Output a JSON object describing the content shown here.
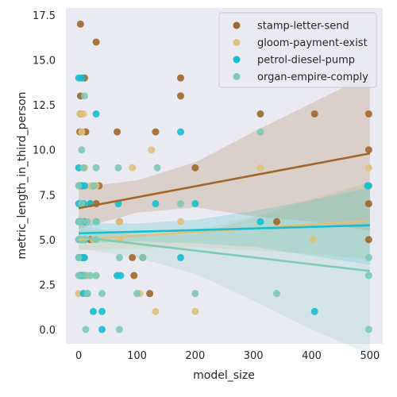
{
  "chart_data": {
    "type": "scatter",
    "xlabel": "model_size",
    "ylabel": "metric_length_in_third_person",
    "xlim": [
      -22,
      522
    ],
    "ylim": [
      -0.8,
      17.9
    ],
    "x_ticks": [
      0,
      100,
      200,
      300,
      400,
      500
    ],
    "y_ticks": [
      0.0,
      2.5,
      5.0,
      7.5,
      10.0,
      12.5,
      15.0,
      17.5
    ],
    "grid": false,
    "legend_position": "top-right",
    "series": [
      {
        "name": "stamp-letter-send",
        "color": "#a0662a",
        "points": [
          [
            3,
            17
          ],
          [
            30,
            16
          ],
          [
            3,
            13
          ],
          [
            10,
            14
          ],
          [
            175,
            14
          ],
          [
            175,
            13
          ],
          [
            312,
            12
          ],
          [
            405,
            12
          ],
          [
            498,
            12
          ],
          [
            498,
            10
          ],
          [
            200,
            9
          ],
          [
            2,
            11
          ],
          [
            12,
            11
          ],
          [
            66,
            11
          ],
          [
            132,
            11
          ],
          [
            35,
            8
          ],
          [
            2,
            8
          ],
          [
            5,
            8
          ],
          [
            25,
            8
          ],
          [
            20,
            7
          ],
          [
            30,
            7
          ],
          [
            498,
            7
          ],
          [
            70,
            6
          ],
          [
            340,
            6
          ],
          [
            498,
            5
          ],
          [
            8,
            4
          ],
          [
            92,
            4
          ],
          [
            8,
            3
          ],
          [
            95,
            3
          ],
          [
            2,
            3
          ],
          [
            10,
            3
          ],
          [
            15,
            2
          ],
          [
            122,
            2
          ],
          [
            10,
            6
          ],
          [
            20,
            5
          ],
          [
            3,
            12
          ],
          [
            110,
            4
          ]
        ],
        "fit": [
          [
            0,
            6.75
          ],
          [
            500,
            9.8
          ]
        ],
        "ci_upper": [
          [
            0,
            7.9
          ],
          [
            100,
            8.3
          ],
          [
            200,
            9.3
          ],
          [
            300,
            11.0
          ],
          [
            400,
            12.6
          ],
          [
            500,
            14.2
          ]
        ],
        "ci_lower": [
          [
            0,
            5.6
          ],
          [
            100,
            6.5
          ],
          [
            200,
            6.8
          ],
          [
            300,
            6.3
          ],
          [
            400,
            6.0
          ],
          [
            500,
            5.5
          ]
        ]
      },
      {
        "name": "gloom-payment-exist",
        "color": "#dfc07e",
        "points": [
          [
            2,
            12
          ],
          [
            8,
            12
          ],
          [
            5,
            11
          ],
          [
            10,
            9
          ],
          [
            0,
            8
          ],
          [
            8,
            7
          ],
          [
            20,
            8
          ],
          [
            30,
            8
          ],
          [
            92,
            9
          ],
          [
            125,
            10
          ],
          [
            312,
            9
          ],
          [
            498,
            9
          ],
          [
            0,
            6
          ],
          [
            8,
            6
          ],
          [
            30,
            6
          ],
          [
            70,
            6
          ],
          [
            70,
            5
          ],
          [
            175,
            6
          ],
          [
            10,
            5
          ],
          [
            25,
            5
          ],
          [
            402,
            5
          ],
          [
            0,
            4
          ],
          [
            5,
            3
          ],
          [
            15,
            3
          ],
          [
            30,
            3
          ],
          [
            105,
            2
          ],
          [
            132,
            1
          ],
          [
            200,
            1
          ],
          [
            0,
            2
          ],
          [
            498,
            8
          ]
        ],
        "fit": [
          [
            0,
            5.0
          ],
          [
            500,
            6.05
          ]
        ],
        "ci_upper": [
          [
            0,
            5.6
          ],
          [
            100,
            5.4
          ],
          [
            200,
            5.5
          ],
          [
            300,
            6.3
          ],
          [
            400,
            7.3
          ],
          [
            500,
            8.2
          ]
        ],
        "ci_lower": [
          [
            0,
            4.4
          ],
          [
            100,
            4.5
          ],
          [
            200,
            4.6
          ],
          [
            300,
            4.4
          ],
          [
            400,
            4.2
          ],
          [
            500,
            3.9
          ]
        ]
      },
      {
        "name": "petrol-diesel-pump",
        "color": "#17becf",
        "points": [
          [
            0,
            14
          ],
          [
            5,
            14
          ],
          [
            0,
            9
          ],
          [
            5,
            8
          ],
          [
            10,
            8
          ],
          [
            30,
            12
          ],
          [
            175,
            11
          ],
          [
            0,
            7
          ],
          [
            5,
            7
          ],
          [
            8,
            7
          ],
          [
            20,
            7
          ],
          [
            68,
            7
          ],
          [
            132,
            7
          ],
          [
            200,
            7
          ],
          [
            0,
            6
          ],
          [
            2,
            6
          ],
          [
            10,
            6
          ],
          [
            30,
            6
          ],
          [
            312,
            6
          ],
          [
            496,
            8
          ],
          [
            498,
            8
          ],
          [
            0,
            5
          ],
          [
            5,
            5
          ],
          [
            10,
            5
          ],
          [
            0,
            4
          ],
          [
            5,
            4
          ],
          [
            10,
            4
          ],
          [
            175,
            4
          ],
          [
            2,
            3
          ],
          [
            5,
            3
          ],
          [
            66,
            3
          ],
          [
            72,
            3
          ],
          [
            8,
            2
          ],
          [
            15,
            2
          ],
          [
            25,
            1
          ],
          [
            40,
            1
          ],
          [
            405,
            1
          ],
          [
            40,
            0
          ]
        ],
        "fit": [
          [
            0,
            5.35
          ],
          [
            500,
            5.8
          ]
        ],
        "ci_upper": [
          [
            0,
            5.9
          ],
          [
            100,
            5.9
          ],
          [
            200,
            6.1
          ],
          [
            300,
            6.6
          ],
          [
            400,
            7.2
          ],
          [
            500,
            7.9
          ]
        ],
        "ci_lower": [
          [
            0,
            4.8
          ],
          [
            100,
            4.9
          ],
          [
            200,
            4.8
          ],
          [
            300,
            4.6
          ],
          [
            400,
            4.1
          ],
          [
            500,
            3.6
          ]
        ]
      },
      {
        "name": "organ-empire-comply",
        "color": "#7dcab5",
        "points": [
          [
            10,
            13
          ],
          [
            5,
            10
          ],
          [
            8,
            9
          ],
          [
            30,
            9
          ],
          [
            68,
            9
          ],
          [
            135,
            9
          ],
          [
            312,
            11
          ],
          [
            0,
            8
          ],
          [
            25,
            8
          ],
          [
            5,
            7
          ],
          [
            175,
            7
          ],
          [
            0,
            6
          ],
          [
            5,
            6
          ],
          [
            15,
            6
          ],
          [
            30,
            6
          ],
          [
            0,
            5
          ],
          [
            8,
            5
          ],
          [
            30,
            5
          ],
          [
            70,
            4
          ],
          [
            110,
            4
          ],
          [
            0,
            4
          ],
          [
            498,
            4
          ],
          [
            0,
            3
          ],
          [
            10,
            3
          ],
          [
            20,
            3
          ],
          [
            30,
            3
          ],
          [
            498,
            3
          ],
          [
            15,
            2
          ],
          [
            40,
            2
          ],
          [
            100,
            2
          ],
          [
            200,
            2
          ],
          [
            340,
            2
          ],
          [
            12,
            0
          ],
          [
            70,
            0
          ],
          [
            498,
            0
          ]
        ],
        "fit": [
          [
            0,
            5.15
          ],
          [
            500,
            3.25
          ]
        ],
        "ci_upper": [
          [
            0,
            5.8
          ],
          [
            100,
            5.2
          ],
          [
            200,
            5.3
          ],
          [
            300,
            6.2
          ],
          [
            400,
            7.2
          ],
          [
            500,
            8.2
          ]
        ],
        "ci_lower": [
          [
            0,
            4.5
          ],
          [
            100,
            4.0
          ],
          [
            200,
            3.1
          ],
          [
            300,
            1.6
          ],
          [
            400,
            0.0
          ],
          [
            500,
            -1.4
          ]
        ]
      }
    ]
  }
}
